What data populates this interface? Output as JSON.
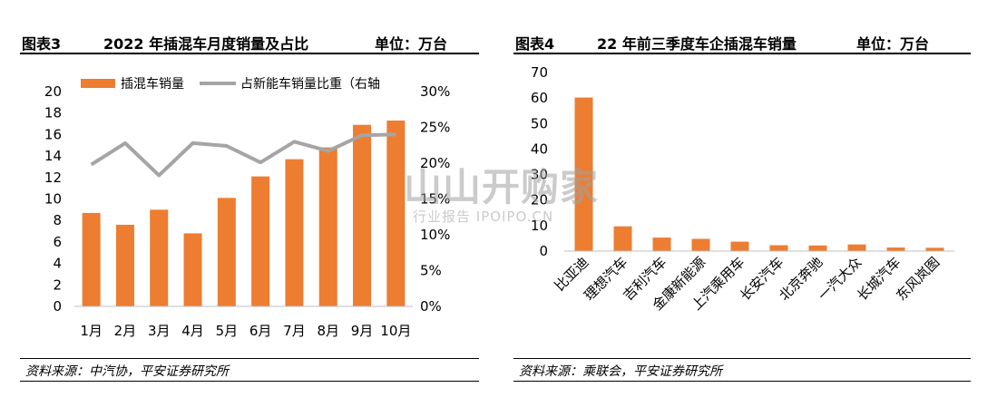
{
  "left": {
    "fig_no": "图表3",
    "title": "2022 年插混车月度销量及占比",
    "unit": "单位：万台",
    "source": "资料来源：中汽协，平安证券研究所"
  },
  "right": {
    "fig_no": "图表4",
    "title": "22 年前三季度车企插混车销量",
    "unit": "单位：万台",
    "source": "资料来源：乘联会，平安证券研究所"
  },
  "watermark": {
    "main": "山山开购家",
    "sub": "行业报告 IPOIPO.CN"
  },
  "chart_data": [
    {
      "type": "bar",
      "categories": [
        "1月",
        "2月",
        "3月",
        "4月",
        "5月",
        "6月",
        "7月",
        "8月",
        "9月",
        "10月"
      ],
      "series": [
        {
          "name": "插混车销量",
          "type": "bar",
          "axis": "left",
          "values": [
            8.7,
            7.6,
            9.0,
            6.8,
            10.1,
            12.1,
            13.7,
            14.8,
            16.9,
            17.3
          ]
        },
        {
          "name": "占新能车销量比重（右轴",
          "type": "line",
          "axis": "right",
          "values": [
            19.8,
            22.8,
            18.3,
            22.8,
            22.4,
            20.1,
            23.0,
            21.7,
            23.9,
            24.0
          ]
        }
      ],
      "ylim": [
        0,
        20
      ],
      "yticks": [
        "0",
        "2",
        "4",
        "6",
        "8",
        "10",
        "12",
        "14",
        "16",
        "18",
        "20"
      ],
      "y2lim": [
        0,
        30
      ],
      "y2ticks": [
        "0%",
        "5%",
        "10%",
        "15%",
        "20%",
        "25%",
        "30%"
      ],
      "legend": "top",
      "grid": false,
      "colors": {
        "bar": "#ED7D31",
        "line": "#A5A5A5"
      }
    },
    {
      "type": "bar",
      "categories": [
        "比亚迪",
        "理想汽车",
        "吉利汽车",
        "金康新能源",
        "上汽乘用车",
        "长安汽车",
        "北京奔驰",
        "一汽大众",
        "长城汽车",
        "东风岚图"
      ],
      "values": [
        60.2,
        9.7,
        5.3,
        4.8,
        3.7,
        2.3,
        2.2,
        2.6,
        1.4,
        1.3
      ],
      "ylim": [
        0,
        70
      ],
      "yticks": [
        "0",
        "10",
        "20",
        "30",
        "40",
        "50",
        "60",
        "70"
      ],
      "grid": false,
      "colors": {
        "bar": "#ED7D31"
      }
    }
  ]
}
